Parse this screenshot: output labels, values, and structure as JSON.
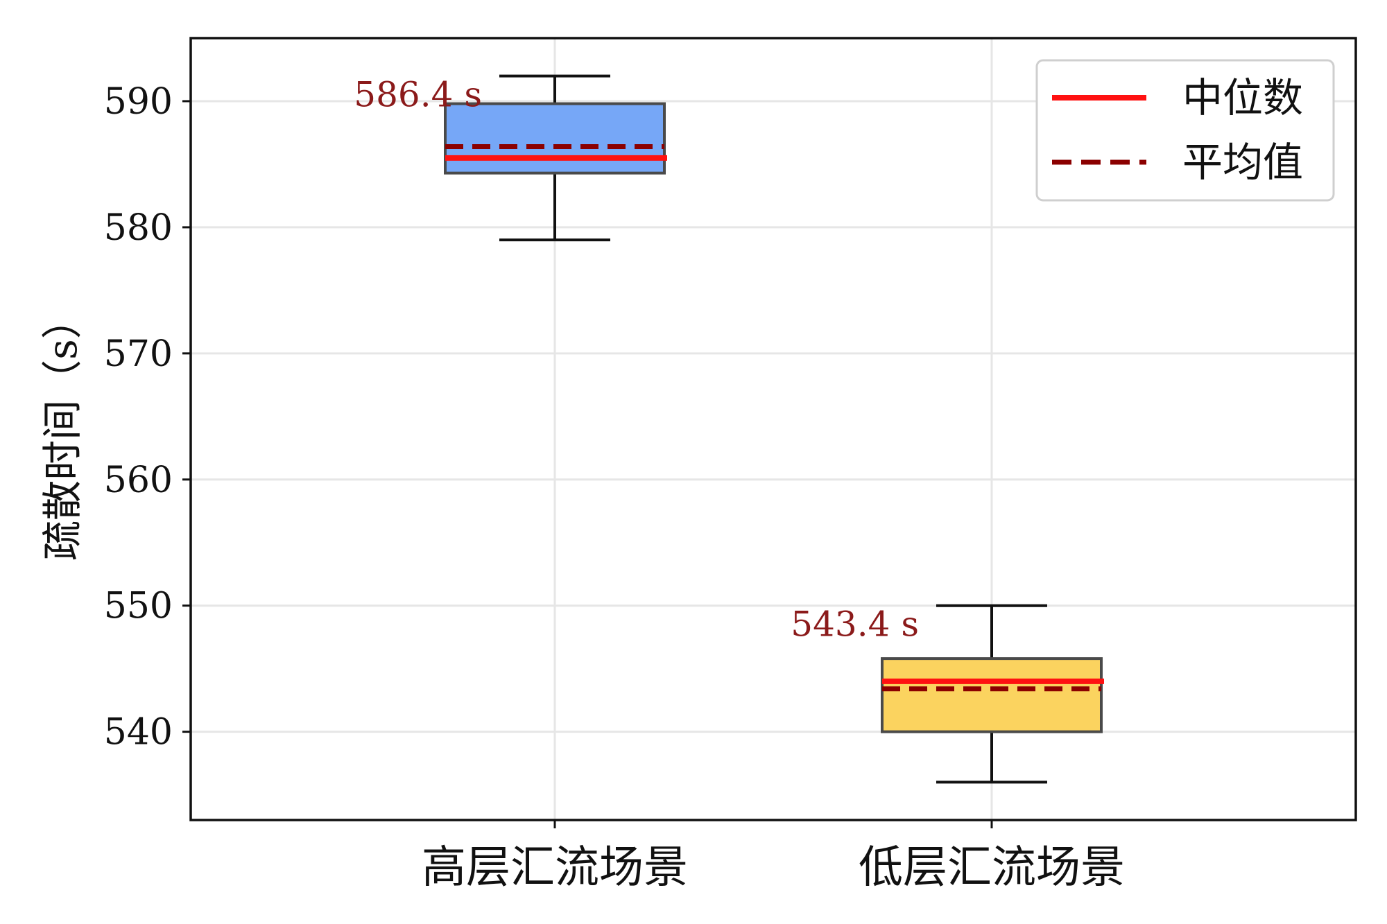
{
  "chart_data": {
    "type": "box",
    "title": "",
    "xlabel": "",
    "ylabel": "疏散时间（s）",
    "ylim": [
      533,
      595
    ],
    "yticks": [
      540,
      550,
      560,
      570,
      580,
      590
    ],
    "grid": true,
    "legend": {
      "position": "top-right",
      "items": [
        {
          "label": "中位数",
          "style": "solid",
          "color": "#ff1111"
        },
        {
          "label": "平均值",
          "style": "dashed",
          "color": "#8b0000"
        }
      ]
    },
    "categories": [
      "高层汇流场景",
      "低层汇流场景"
    ],
    "boxes": [
      {
        "category": "高层汇流场景",
        "whisker_low": 579,
        "q1": 584.3,
        "median": 585.5,
        "mean": 586.4,
        "q3": 589.8,
        "whisker_high": 592,
        "fill": "#76a7f7",
        "annotation": "586.4 s"
      },
      {
        "category": "低层汇流场景",
        "whisker_low": 536,
        "q1": 540,
        "median": 544,
        "mean": 543.4,
        "q3": 545.8,
        "whisker_high": 550,
        "fill": "#fbd35f",
        "annotation": "543.4 s"
      }
    ],
    "colors": {
      "median": "#ff1111",
      "mean": "#8b0000",
      "annotation": "#8b1a1a",
      "grid": "#e6e6e6",
      "axis": "#111111",
      "box_edge": "#4a4a4a"
    }
  }
}
